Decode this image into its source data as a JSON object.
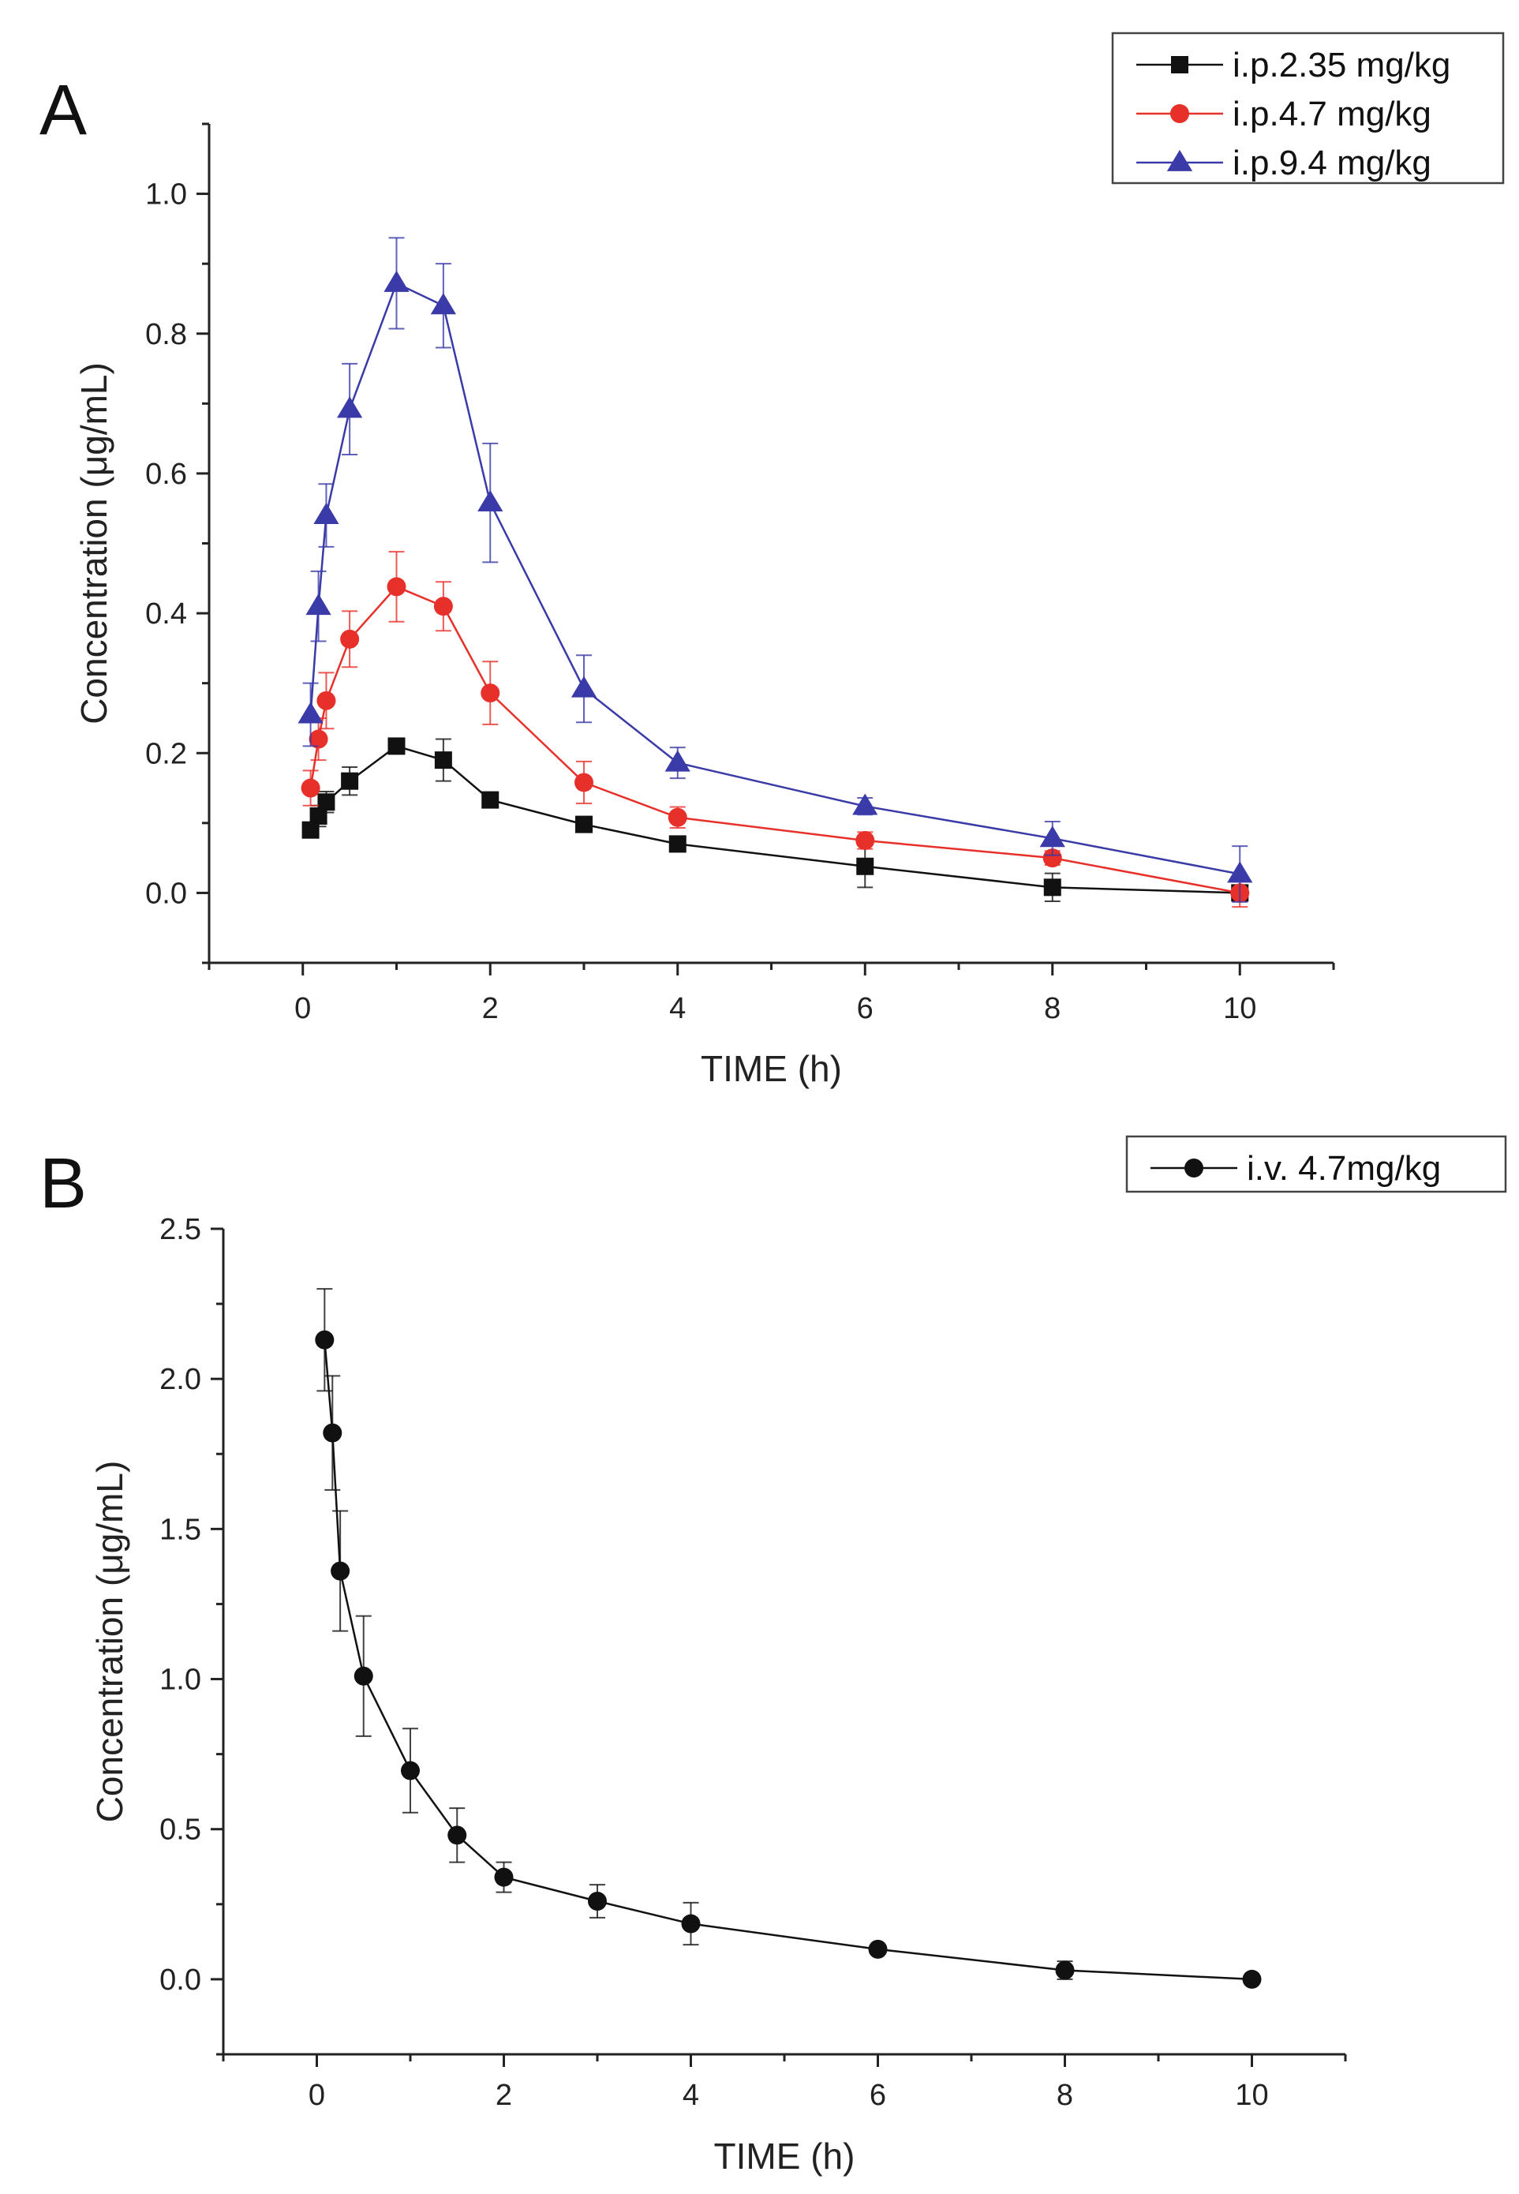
{
  "panels": [
    {
      "letter": "A",
      "chart_data": {
        "type": "line",
        "title": "",
        "xlabel": "TIME (h)",
        "ylabel": "Concentration (μg/mL)",
        "xlim": [
          -1,
          11
        ],
        "ylim": [
          -0.1,
          1.1
        ],
        "xticks": [
          0,
          2,
          4,
          6,
          8,
          10
        ],
        "yticks": [
          0.0,
          0.2,
          0.4,
          0.6,
          0.8,
          1.0
        ],
        "xtick_labels": [
          "0",
          "2",
          "4",
          "6",
          "8",
          "10"
        ],
        "ytick_labels": [
          "0.0",
          "0.2",
          "0.4",
          "0.6",
          "0.8",
          "1.0"
        ],
        "x": [
          0.083,
          0.167,
          0.25,
          0.5,
          1,
          1.5,
          2,
          3,
          4,
          6,
          8,
          10
        ],
        "legend_position": "top-right",
        "grid": false,
        "series": [
          {
            "name": "i.p.2.35 mg/kg",
            "marker": "square",
            "color": "#111111",
            "values": [
              0.09,
              0.11,
              0.13,
              0.16,
              0.21,
              0.19,
              0.133,
              0.098,
              0.07,
              0.038,
              0.008,
              0.0
            ],
            "errors": [
              0.01,
              0.015,
              0.015,
              0.02,
              0.01,
              0.03,
              0.01,
              0.008,
              0.01,
              0.03,
              0.02,
              0.01
            ]
          },
          {
            "name": "i.p.4.7 mg/kg",
            "marker": "circle",
            "color": "#e8302a",
            "values": [
              0.15,
              0.22,
              0.275,
              0.363,
              0.438,
              0.41,
              0.286,
              0.158,
              0.108,
              0.075,
              0.05,
              0.0
            ],
            "errors": [
              0.025,
              0.03,
              0.04,
              0.04,
              0.05,
              0.035,
              0.045,
              0.03,
              0.015,
              0.012,
              0.01,
              0.02
            ]
          },
          {
            "name": "i.p.9.4 mg/kg",
            "marker": "triangle",
            "color": "#3a3aa8",
            "values": [
              0.255,
              0.41,
              0.54,
              0.692,
              0.872,
              0.84,
              0.558,
              0.292,
              0.186,
              0.124,
              0.078,
              0.027
            ],
            "errors": [
              0.045,
              0.05,
              0.045,
              0.065,
              0.065,
              0.06,
              0.085,
              0.048,
              0.022,
              0.012,
              0.024,
              0.04
            ]
          }
        ]
      }
    },
    {
      "letter": "B",
      "chart_data": {
        "type": "line",
        "title": "",
        "xlabel": "TIME (h)",
        "ylabel": "Concentration (μg/mL)",
        "xlim": [
          -1,
          11
        ],
        "ylim": [
          -0.25,
          2.5
        ],
        "xticks": [
          0,
          2,
          4,
          6,
          8,
          10
        ],
        "yticks": [
          0.0,
          0.5,
          1.0,
          1.5,
          2.0,
          2.5
        ],
        "xtick_labels": [
          "0",
          "2",
          "4",
          "6",
          "8",
          "10"
        ],
        "ytick_labels": [
          "0.0",
          "0.5",
          "1.0",
          "1.5",
          "2.0",
          "2.5"
        ],
        "x": [
          0.083,
          0.167,
          0.25,
          0.5,
          1,
          1.5,
          2,
          3,
          4,
          6,
          8,
          10
        ],
        "legend_position": "top-right",
        "grid": false,
        "series": [
          {
            "name": "i.v. 4.7mg/kg",
            "marker": "circle",
            "color": "#111111",
            "values": [
              2.13,
              1.82,
              1.36,
              1.01,
              0.695,
              0.48,
              0.34,
              0.26,
              0.185,
              0.1,
              0.03,
              0.0
            ],
            "errors": [
              0.17,
              0.19,
              0.2,
              0.2,
              0.14,
              0.09,
              0.05,
              0.055,
              0.07,
              0.015,
              0.03,
              0.01
            ]
          }
        ]
      }
    }
  ]
}
